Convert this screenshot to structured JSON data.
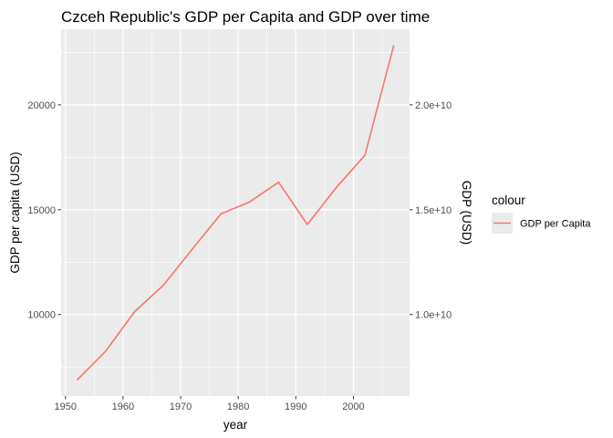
{
  "chart_data": {
    "type": "line",
    "title": "Czceh Republic's GDP per Capita and GDP over time",
    "xlabel": "year",
    "ylabel": "GDP per capita (USD)",
    "y2label": "GDP (USD)",
    "xlim": [
      1949.25,
      2009.75
    ],
    "ylim": [
      6117,
      23606
    ],
    "x_ticks": [
      1950,
      1960,
      1970,
      1980,
      1990,
      2000
    ],
    "y_ticks": [
      10000,
      15000,
      20000
    ],
    "y2_ticks": [
      {
        "value": 10000,
        "label": "1.0e+10"
      },
      {
        "value": 15000,
        "label": "1.5e+10"
      },
      {
        "value": 20000,
        "label": "2.0e+10"
      }
    ],
    "grid": true,
    "legend": {
      "title": "colour",
      "placement": "right"
    },
    "series": [
      {
        "name": "GDP per Capita",
        "color": "#f8766d",
        "x": [
          1952,
          1957,
          1962,
          1967,
          1972,
          1977,
          1982,
          1987,
          1992,
          1997,
          2002,
          2007
        ],
        "values": [
          6876,
          8256,
          10137,
          11399,
          13108,
          14800,
          15377,
          16310,
          14297,
          16049,
          17596,
          22833
        ]
      }
    ]
  }
}
